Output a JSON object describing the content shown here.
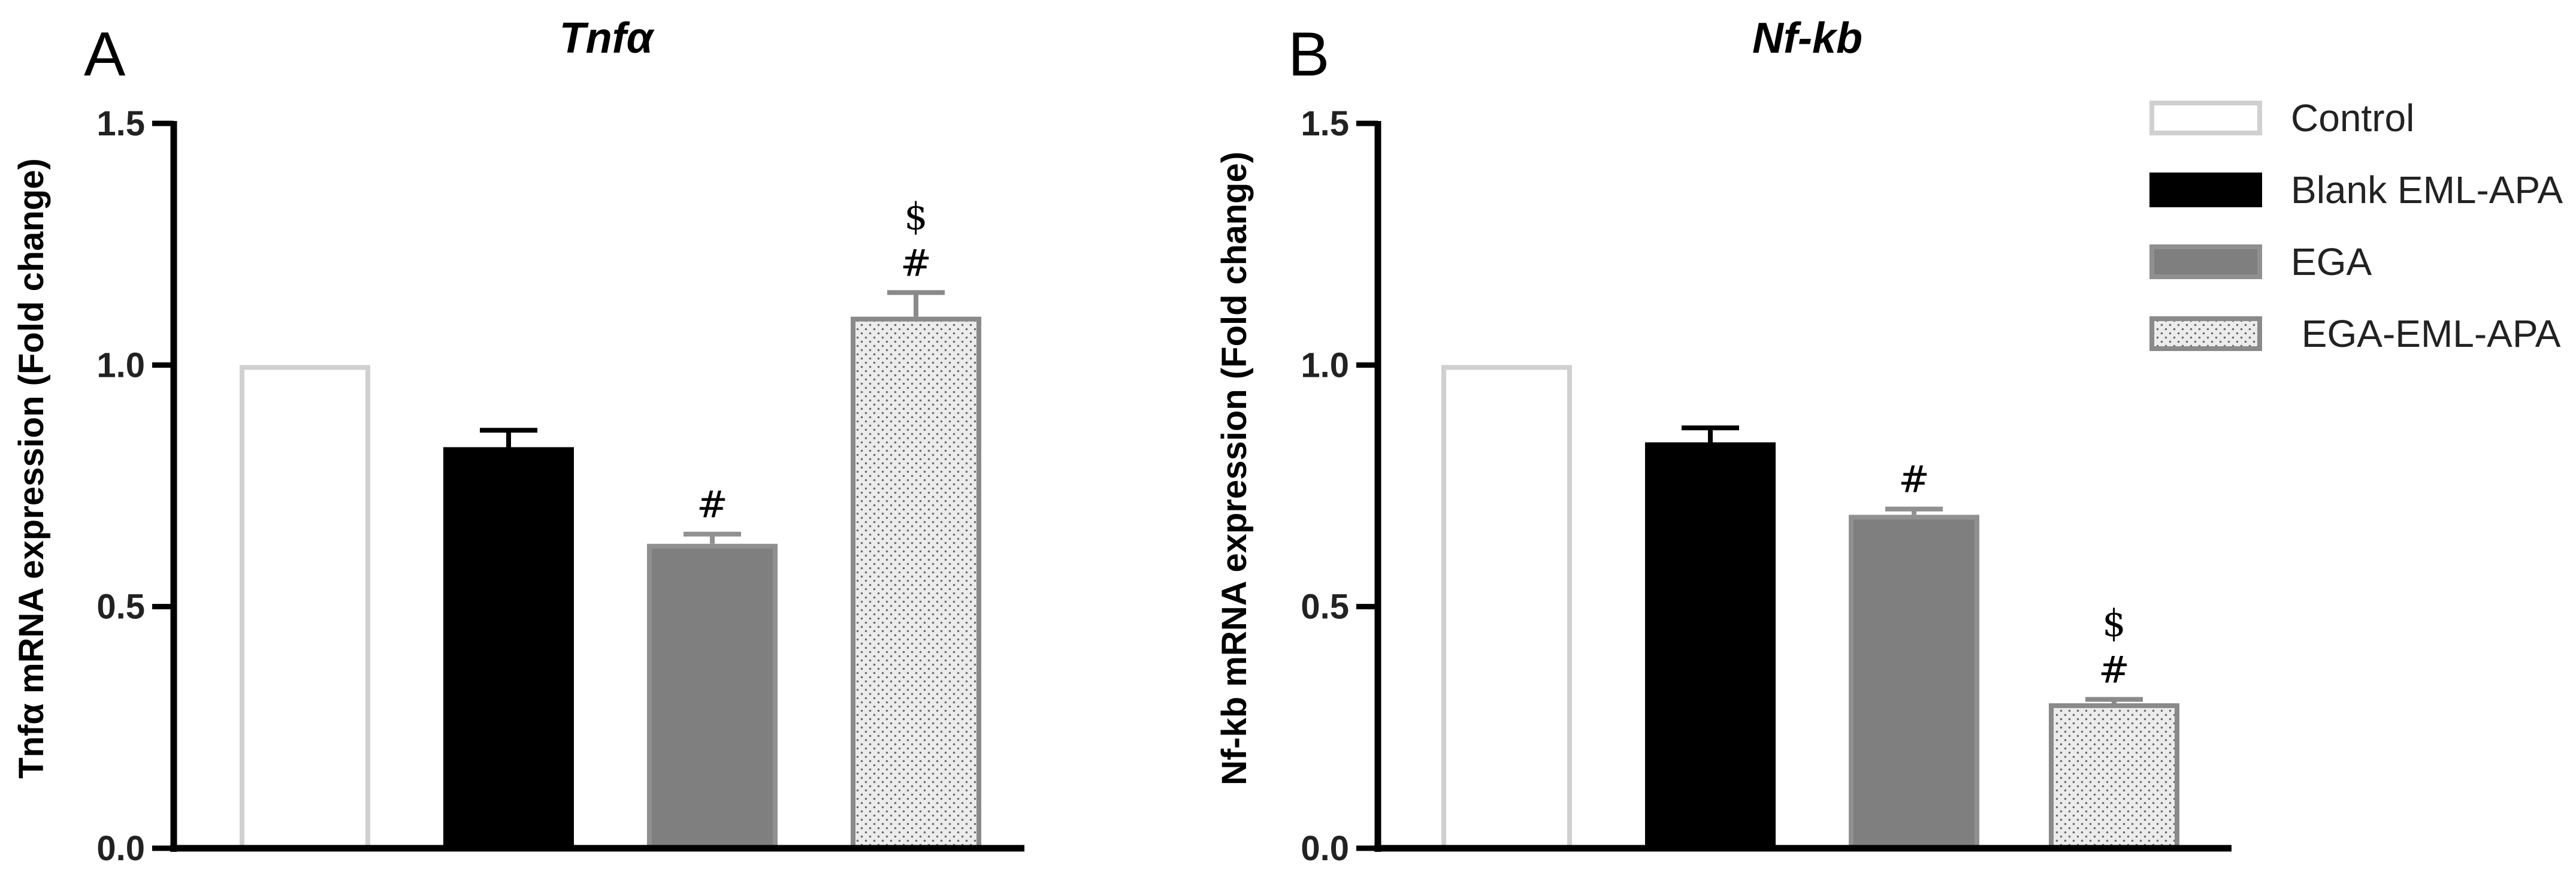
{
  "chart_data": [
    {
      "type": "bar",
      "panel": "A",
      "title": "Tnfα",
      "ylabel": "Tnfα mRNA expression (Fold change)",
      "ylim": [
        0,
        1.5
      ],
      "yticks": [
        "0.0",
        "0.5",
        "1.0",
        "1.5"
      ],
      "ytick_values": [
        0,
        0.5,
        1.0,
        1.5
      ],
      "categories": [
        "Control",
        "Blank EML-APA",
        "EGA",
        "EGA-EML-APA"
      ],
      "values": [
        1.0,
        0.83,
        0.63,
        1.1
      ],
      "errors": [
        0,
        0.035,
        0.02,
        0.05
      ],
      "annotations": [
        "",
        "",
        "#",
        "$\n#"
      ]
    },
    {
      "type": "bar",
      "panel": "B",
      "title": "Nf-kb",
      "ylabel": "Nf-kb mRNA expression (Fold change)",
      "ylim": [
        0,
        1.5
      ],
      "yticks": [
        "0.0",
        "0.5",
        "1.0",
        "1.5"
      ],
      "ytick_values": [
        0,
        0.5,
        1.0,
        1.5
      ],
      "categories": [
        "Control",
        "Blank EML-APA",
        "EGA",
        "EGA-EML-APA"
      ],
      "values": [
        1.0,
        0.84,
        0.69,
        0.3
      ],
      "errors": [
        0,
        0.03,
        0.012,
        0.008
      ],
      "annotations": [
        "",
        "",
        "#",
        "$\n#"
      ]
    }
  ],
  "legend": {
    "position": "top-right",
    "items": [
      {
        "label": "Control",
        "style": "control"
      },
      {
        "label": "Blank EML-APA",
        "style": "blank"
      },
      {
        "label": "EGA",
        "style": "ega"
      },
      {
        "label": " EGA-EML-APA",
        "style": "dotted"
      }
    ]
  },
  "colors": {
    "control_stroke": "#d0d0d0",
    "blank_fill": "#000000",
    "ega_fill": "#7f7f7f",
    "ega_stroke": "#909090",
    "dotted_fill": "#ececec",
    "dotted_stroke": "#8a8a8a",
    "axis": "#000000"
  }
}
